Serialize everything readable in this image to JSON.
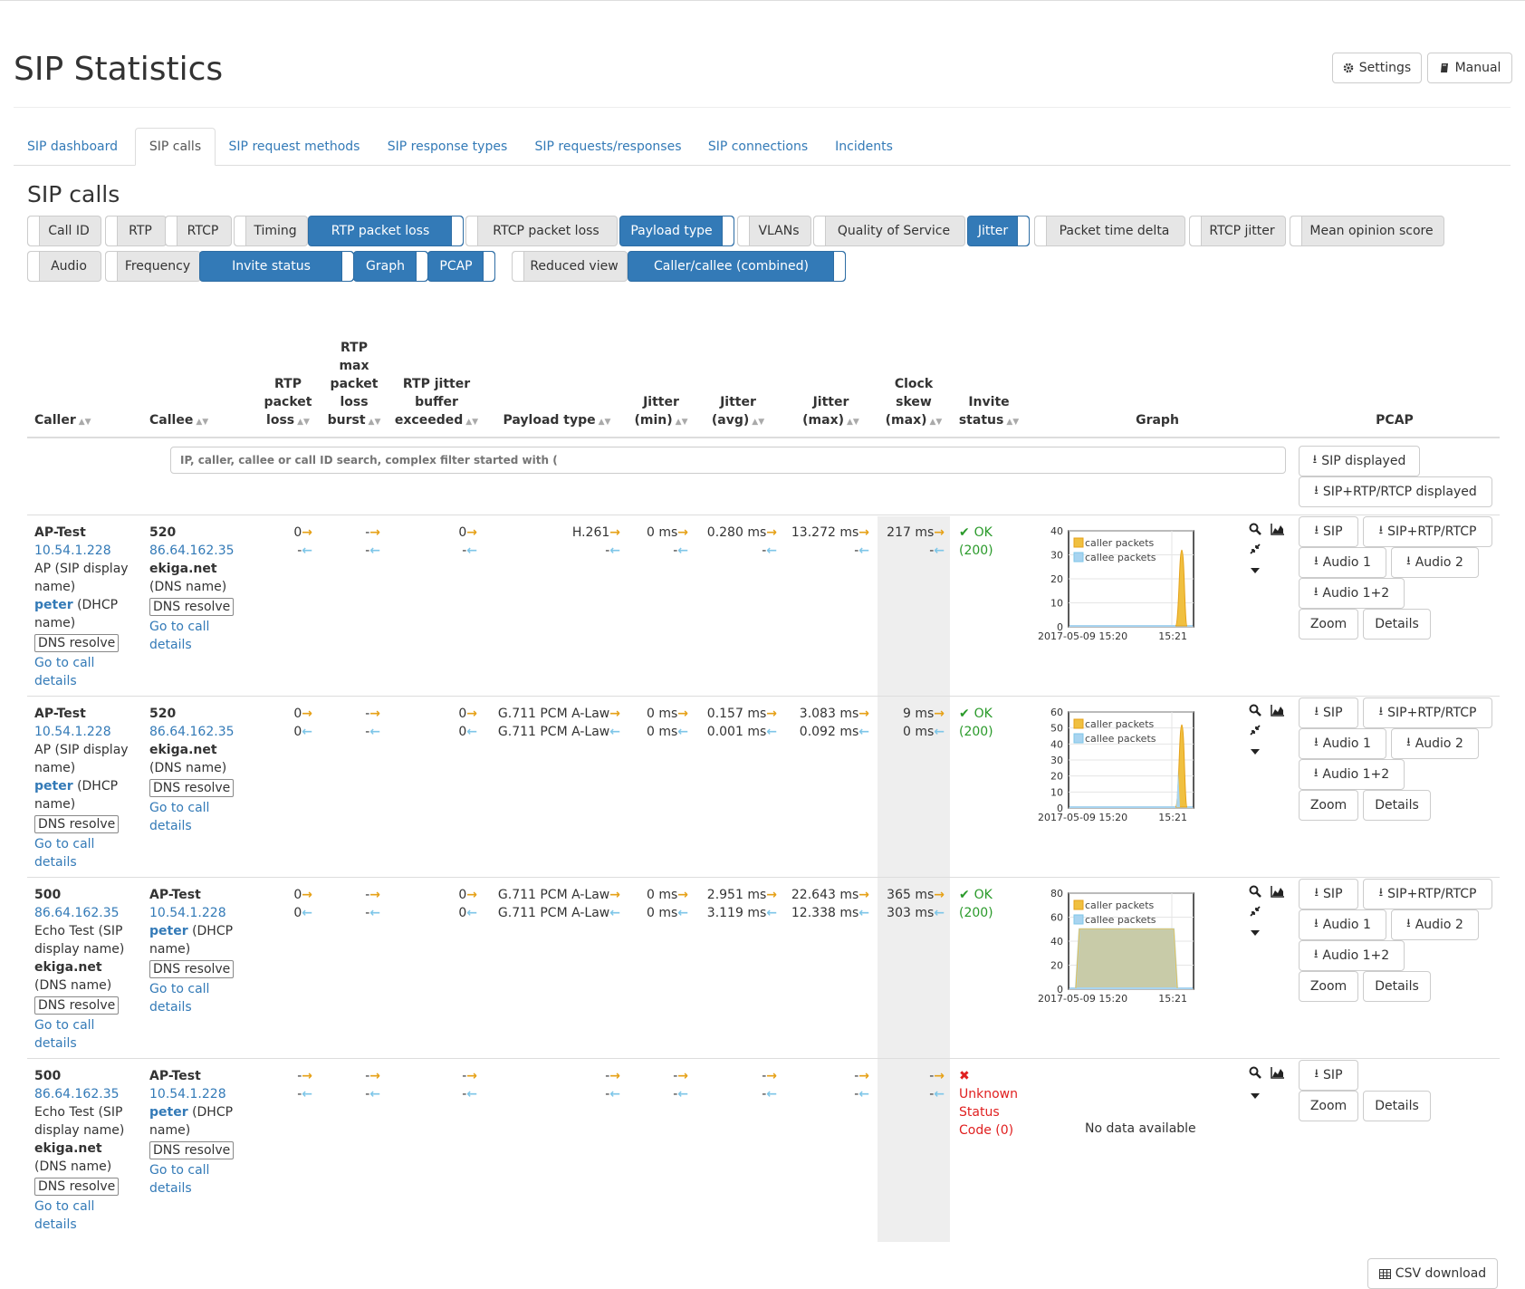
{
  "page": {
    "title": "SIP Statistics",
    "settings_label": "Settings",
    "manual_label": "Manual"
  },
  "tabs": [
    "SIP dashboard",
    "SIP calls",
    "SIP request methods",
    "SIP response types",
    "SIP requests/responses",
    "SIP connections",
    "Incidents"
  ],
  "active_tab": "SIP calls",
  "section_title": "SIP calls",
  "toggles_row1": [
    {
      "label": "Call ID",
      "on": false
    },
    {
      "label": "RTP",
      "on": false
    },
    {
      "label": "RTCP",
      "on": false
    },
    {
      "label": "Timing",
      "on": false
    },
    {
      "label": "RTP packet loss",
      "on": true
    },
    {
      "label": "RTCP packet loss",
      "on": false
    },
    {
      "label": "Payload type",
      "on": true
    },
    {
      "label": "VLANs",
      "on": false
    },
    {
      "label": "Quality of Service",
      "on": false
    },
    {
      "label": "Jitter",
      "on": true
    },
    {
      "label": "Packet time delta",
      "on": false
    },
    {
      "label": "RTCP jitter",
      "on": false
    },
    {
      "label": "Mean opinion score",
      "on": false
    }
  ],
  "toggles_row2": [
    {
      "label": "Audio",
      "on": false
    },
    {
      "label": "Frequency",
      "on": false
    },
    {
      "label": "Invite status",
      "on": true
    },
    {
      "label": "Graph",
      "on": true
    },
    {
      "label": "PCAP",
      "on": true
    },
    {
      "label": "Reduced view",
      "on": false
    },
    {
      "label": "Caller/callee (combined)",
      "on": true
    }
  ],
  "columns": {
    "caller": "Caller",
    "callee": "Callee",
    "rtp_packet_loss": "RTP packet loss",
    "rtp_max_burst": "RTP max packet loss burst",
    "rtp_jitter_buffer": "RTP jitter buffer exceeded",
    "payload_type": "Payload type",
    "jitter_min": "Jitter (min)",
    "jitter_avg": "Jitter (avg)",
    "jitter_max": "Jitter (max)",
    "clock_skew": "Clock skew (max)",
    "invite_status": "Invite status",
    "graph": "Graph",
    "pcap": "PCAP"
  },
  "search": {
    "placeholder": "IP, caller, callee or call ID search, complex filter started with ("
  },
  "header_buttons": {
    "sip_displayed": "SIP displayed",
    "sip_rtp_displayed": "SIP+RTP/RTCP displayed"
  },
  "common": {
    "dns_resolve": "DNS resolve",
    "go_to_call": "Go to call",
    "details_link": "details",
    "sip_display_name": "(SIP display name)",
    "dhcp_name": "(DHCP name)",
    "dns_name": "(DNS name)",
    "btn_sip": "SIP",
    "btn_sip_rtp": "SIP+RTP/RTCP",
    "btn_audio1": "Audio 1",
    "btn_audio2": "Audio 2",
    "btn_audio12": "Audio 1+2",
    "btn_zoom": "Zoom",
    "btn_details": "Details",
    "legend_caller": "caller packets",
    "legend_callee": "callee packets",
    "x_start": "2017-05-09 15:20",
    "x_end": "15:21",
    "no_data": "No data available",
    "csv_download": "CSV download"
  },
  "calls": [
    {
      "caller": {
        "name": "AP-Test",
        "ip": "10.54.1.228",
        "display": "AP",
        "dhcp": "peter"
      },
      "callee": {
        "name": "520",
        "ip": "86.64.162.35",
        "dns": "ekiga.net"
      },
      "loss": [
        "0",
        "-"
      ],
      "burst": [
        "-",
        "-"
      ],
      "buffer": [
        "0",
        "-"
      ],
      "payload": [
        "H.261",
        "-"
      ],
      "jmin": [
        "0 ms",
        "-"
      ],
      "javg": [
        "0.280 ms",
        "-"
      ],
      "jmax": [
        "13.272 ms",
        "-"
      ],
      "skew": [
        "217 ms",
        "-"
      ],
      "status": {
        "ok": true,
        "text": "OK",
        "code": "(200)"
      },
      "graph": {
        "ymax": 40,
        "yticks": [
          0,
          10,
          20,
          30,
          40
        ],
        "caller_peak": 32,
        "callee_peak": 0,
        "shape": "spike"
      }
    },
    {
      "caller": {
        "name": "AP-Test",
        "ip": "10.54.1.228",
        "display": "AP",
        "dhcp": "peter"
      },
      "callee": {
        "name": "520",
        "ip": "86.64.162.35",
        "dns": "ekiga.net"
      },
      "loss": [
        "0",
        "0"
      ],
      "burst": [
        "-",
        "-"
      ],
      "buffer": [
        "0",
        "0"
      ],
      "payload": [
        "G.711 PCM A-Law",
        "G.711 PCM A-Law"
      ],
      "jmin": [
        "0 ms",
        "0 ms"
      ],
      "javg": [
        "0.157 ms",
        "0.001 ms"
      ],
      "jmax": [
        "3.083 ms",
        "0.092 ms"
      ],
      "skew": [
        "9 ms",
        "0 ms"
      ],
      "status": {
        "ok": true,
        "text": "OK",
        "code": "(200)"
      },
      "graph": {
        "ymax": 60,
        "yticks": [
          0,
          10,
          20,
          30,
          40,
          50,
          60
        ],
        "caller_peak": 52,
        "callee_peak": 8,
        "shape": "spike"
      }
    },
    {
      "caller": {
        "name": "500",
        "ip": "86.64.162.35",
        "display": "Echo Test",
        "dns": "ekiga.net"
      },
      "callee": {
        "name": "AP-Test",
        "ip": "10.54.1.228",
        "dhcp": "peter"
      },
      "loss": [
        "0",
        "0"
      ],
      "burst": [
        "-",
        "-"
      ],
      "buffer": [
        "0",
        "0"
      ],
      "payload": [
        "G.711 PCM A-Law",
        "G.711 PCM A-Law"
      ],
      "jmin": [
        "0 ms",
        "0 ms"
      ],
      "javg": [
        "2.951 ms",
        "3.119 ms"
      ],
      "jmax": [
        "22.643 ms",
        "12.338 ms"
      ],
      "skew": [
        "365 ms",
        "303 ms"
      ],
      "status": {
        "ok": true,
        "text": "OK",
        "code": "(200)"
      },
      "graph": {
        "ymax": 80,
        "yticks": [
          0,
          20,
          40,
          60,
          80
        ],
        "caller_peak": 50,
        "callee_peak": 50,
        "shape": "plateau"
      }
    },
    {
      "caller": {
        "name": "500",
        "ip": "86.64.162.35",
        "display": "Echo Test",
        "dns": "ekiga.net"
      },
      "callee": {
        "name": "AP-Test",
        "ip": "10.54.1.228",
        "dhcp": "peter"
      },
      "loss": [
        "-",
        "-"
      ],
      "burst": [
        "-",
        "-"
      ],
      "buffer": [
        "-",
        "-"
      ],
      "payload": [
        "-",
        "-"
      ],
      "jmin": [
        "-",
        "-"
      ],
      "javg": [
        "-",
        "-"
      ],
      "jmax": [
        "-",
        "-"
      ],
      "skew": [
        "-",
        "-"
      ],
      "status": {
        "ok": false,
        "text": "Unknown Status Code (0)",
        "code": ""
      },
      "graph": null
    }
  ],
  "icons": {
    "settings": "gear-icon",
    "manual": "book-icon",
    "download": "download-icon",
    "search": "search-icon",
    "chart": "area-chart-icon",
    "compress": "compress-icon",
    "caret": "caret-down-icon",
    "ok": "check-icon",
    "error": "cross-icon",
    "table": "table-icon"
  },
  "colors": {
    "accent": "#337ab7",
    "caller": "#f0c040",
    "callee": "#a8d4f0",
    "ok": "#2a9a2a",
    "error": "#e02020",
    "arrow_out": "#e6a117",
    "arrow_in": "#7ec6e8"
  }
}
